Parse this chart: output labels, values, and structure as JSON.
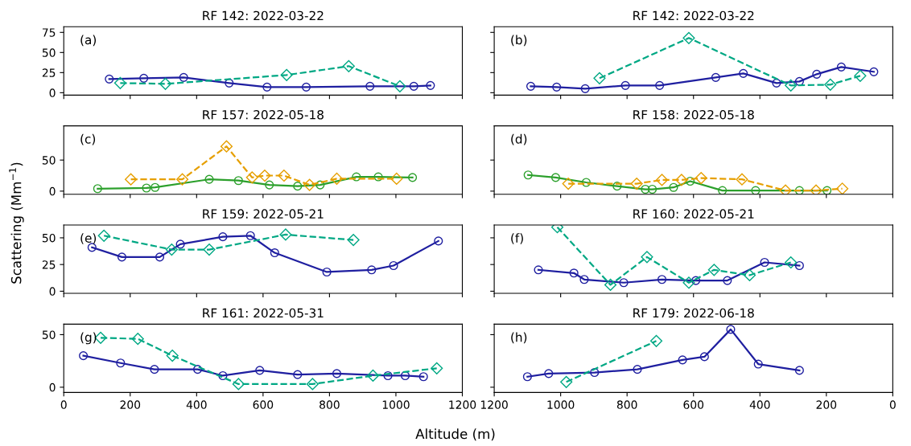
{
  "chart_data": [
    {
      "type": "line",
      "title": "RF 142: 2022-03-22",
      "annotations": [
        "(a)"
      ],
      "ylabel": "Scattering (Mm$^{−1}$)",
      "xlim": [
        0,
        1200
      ],
      "xticks": [
        0,
        200,
        400,
        600,
        800,
        1000,
        1200
      ],
      "ylim": [
        -3,
        82
      ],
      "yticks": [
        0,
        25,
        50,
        75
      ],
      "tick_labels": "y",
      "grid": false,
      "legend": false,
      "series": [
        {
          "color": "#1f1fa0",
          "marker": "circle",
          "line_style": "solid",
          "x": [
            137,
            241,
            361,
            498,
            612,
            730,
            922,
            1054,
            1104
          ],
          "values": [
            17,
            18,
            19,
            12,
            7,
            7,
            8,
            8,
            9
          ]
        },
        {
          "color": "#00a884",
          "marker": "diamond",
          "line_style": "dashed",
          "x": [
            170,
            306,
            671,
            858,
            1012
          ],
          "values": [
            12,
            11,
            22,
            33,
            8
          ]
        }
      ]
    },
    {
      "type": "line",
      "title": "RF 142: 2022-03-22",
      "annotations": [
        "(b)"
      ],
      "xlim": [
        1200,
        0
      ],
      "xticks": [
        1200,
        1000,
        800,
        600,
        400,
        200,
        0
      ],
      "ylim": [
        -3,
        82
      ],
      "yticks": [
        0,
        25,
        50,
        75
      ],
      "tick_labels": false,
      "grid": false,
      "legend": false,
      "series": [
        {
          "color": "#1f1fa0",
          "marker": "circle",
          "line_style": "solid",
          "x": [
            1090,
            1012,
            926,
            805,
            702,
            533,
            450,
            350,
            281,
            229,
            155,
            57
          ],
          "values": [
            8,
            7,
            5,
            9,
            9,
            19,
            24,
            12,
            14,
            23,
            32,
            26
          ]
        },
        {
          "color": "#00a884",
          "marker": "diamond",
          "line_style": "dashed",
          "x": [
            883,
            614,
            307,
            188,
            98
          ],
          "values": [
            18,
            68,
            9,
            10,
            21
          ]
        }
      ]
    },
    {
      "type": "line",
      "title": "RF 157: 2022-05-18",
      "annotations": [
        "(c)"
      ],
      "xlim": [
        0,
        1200
      ],
      "xticks": [
        0,
        200,
        400,
        600,
        800,
        1000,
        1200
      ],
      "ylim": [
        -5,
        105
      ],
      "yticks": [
        0,
        50
      ],
      "tick_labels": "y",
      "grid": false,
      "legend": false,
      "series": [
        {
          "color": "#2ca02c",
          "marker": "circle",
          "line_style": "solid",
          "x": [
            102,
            249,
            275,
            438,
            526,
            619,
            704,
            772,
            881,
            947,
            1050
          ],
          "values": [
            4,
            5,
            6,
            19,
            17,
            10,
            8,
            10,
            23,
            23,
            22
          ]
        },
        {
          "color": "#e69f00",
          "marker": "diamond",
          "line_style": "dashed",
          "x": [
            202,
            357,
            490,
            567,
            605,
            663,
            740,
            822,
            1002
          ],
          "values": [
            19,
            19,
            72,
            22,
            25,
            25,
            10,
            20,
            20
          ]
        }
      ]
    },
    {
      "type": "line",
      "title": "RF 158: 2022-05-18",
      "annotations": [
        "(d)"
      ],
      "xlim": [
        1200,
        0
      ],
      "xticks": [
        1200,
        1000,
        800,
        600,
        400,
        200,
        0
      ],
      "ylim": [
        -5,
        105
      ],
      "yticks": [
        0,
        50
      ],
      "tick_labels": false,
      "grid": false,
      "legend": false,
      "series": [
        {
          "color": "#2ca02c",
          "marker": "circle",
          "line_style": "solid",
          "x": [
            1098,
            1015,
            923,
            830,
            745,
            724,
            660,
            610,
            513,
            413,
            281,
            198
          ],
          "values": [
            26,
            22,
            14,
            8,
            3,
            3,
            6,
            16,
            1,
            1,
            1,
            1
          ]
        },
        {
          "color": "#e69f00",
          "marker": "diamond",
          "line_style": "dashed",
          "x": [
            977,
            771,
            695,
            636,
            577,
            454,
            323,
            231,
            152
          ],
          "values": [
            12,
            12,
            18,
            18,
            21,
            19,
            1,
            1,
            4
          ]
        }
      ]
    },
    {
      "type": "line",
      "title": "RF 159: 2022-05-21",
      "annotations": [
        "(e)"
      ],
      "xlim": [
        0,
        1200
      ],
      "xticks": [
        0,
        200,
        400,
        600,
        800,
        1000,
        1200
      ],
      "ylim": [
        -2,
        62
      ],
      "yticks": [
        0,
        25,
        50
      ],
      "tick_labels": "y",
      "grid": false,
      "legend": false,
      "series": [
        {
          "color": "#1f1fa0",
          "marker": "circle",
          "line_style": "solid",
          "x": [
            85,
            175,
            289,
            351,
            479,
            562,
            635,
            792,
            927,
            993,
            1128
          ],
          "values": [
            41,
            32,
            32,
            44,
            51,
            52,
            36,
            18,
            20,
            24,
            47
          ]
        },
        {
          "color": "#00a884",
          "marker": "diamond",
          "line_style": "dashed",
          "x": [
            121,
            325,
            438,
            668,
            872
          ],
          "values": [
            52,
            39,
            39,
            53,
            48
          ]
        }
      ]
    },
    {
      "type": "line",
      "title": "RF 160: 2022-05-21",
      "annotations": [
        "(f)"
      ],
      "xlim": [
        1200,
        0
      ],
      "xticks": [
        1200,
        1000,
        800,
        600,
        400,
        200,
        0
      ],
      "ylim": [
        -2,
        62
      ],
      "yticks": [
        0,
        25,
        50
      ],
      "tick_labels": false,
      "grid": false,
      "legend": false,
      "series": [
        {
          "color": "#1f1fa0",
          "marker": "circle",
          "line_style": "solid",
          "x": [
            1067,
            960,
            929,
            810,
            695,
            593,
            498,
            386,
            281
          ],
          "values": [
            20,
            17,
            11,
            8,
            11,
            10,
            10,
            27,
            24
          ]
        },
        {
          "color": "#00a884",
          "marker": "diamond",
          "line_style": "dashed",
          "x": [
            1010,
            850,
            740,
            614,
            538,
            431,
            307
          ],
          "values": [
            60,
            6,
            32,
            8,
            20,
            15,
            27
          ]
        }
      ]
    },
    {
      "type": "line",
      "title": "RF 161: 2022-05-31",
      "annotations": [
        "(g)"
      ],
      "xlabel": "Altitude (m)",
      "xlim": [
        0,
        1200
      ],
      "xticks": [
        0,
        200,
        400,
        600,
        800,
        1000,
        1200
      ],
      "ylim": [
        -5,
        60
      ],
      "yticks": [
        0,
        50
      ],
      "grid": false,
      "legend": false,
      "series": [
        {
          "color": "#1f1fa0",
          "marker": "circle",
          "line_style": "solid",
          "x": [
            59,
            171,
            273,
            403,
            479,
            590,
            704,
            822,
            976,
            1028,
            1083
          ],
          "values": [
            30,
            23,
            17,
            17,
            11,
            16,
            12,
            13,
            11,
            11,
            10
          ]
        },
        {
          "color": "#00a884",
          "marker": "diamond",
          "line_style": "dashed",
          "x": [
            111,
            223,
            327,
            526,
            749,
            931,
            1123
          ],
          "values": [
            47,
            46,
            30,
            3,
            3,
            11,
            18
          ]
        }
      ]
    },
    {
      "type": "line",
      "title": "RF 179: 2022-06-18",
      "annotations": [
        "(h)"
      ],
      "xlim": [
        1200,
        0
      ],
      "xticks": [
        1200,
        1000,
        800,
        600,
        400,
        200,
        0
      ],
      "ylim": [
        -5,
        60
      ],
      "yticks": [
        0,
        50
      ],
      "tick_labels": "x",
      "grid": false,
      "legend": false,
      "series": [
        {
          "color": "#1f1fa0",
          "marker": "circle",
          "line_style": "solid",
          "x": [
            1100,
            1036,
            898,
            769,
            633,
            567,
            488,
            405,
            281
          ],
          "values": [
            10,
            13,
            14,
            17,
            26,
            29,
            55,
            22,
            16
          ]
        },
        {
          "color": "#00a884",
          "marker": "diamond",
          "line_style": "dashed",
          "x": [
            983,
            712
          ],
          "values": [
            5,
            44
          ]
        }
      ]
    }
  ]
}
